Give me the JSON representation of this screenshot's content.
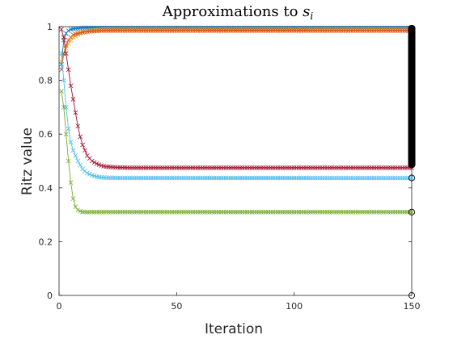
{
  "chart_data": {
    "type": "line",
    "title": {
      "prefix": "Approximations to ",
      "math": "s",
      "subscript": "i"
    },
    "xlabel": "Iteration",
    "ylabel": "Ritz  value",
    "xlim": [
      0,
      150
    ],
    "ylim": [
      0,
      1
    ],
    "xticks": [
      0,
      50,
      100,
      150
    ],
    "yticks": [
      0,
      0.2,
      0.4,
      0.6,
      0.8,
      1
    ],
    "ytick_labels": [
      "0",
      "0.2",
      "0.4",
      "0.6",
      "0.8",
      "1"
    ],
    "grid": false,
    "marker": "x",
    "series": [
      {
        "color": "#0072BD",
        "final": 0.995,
        "x": [
          1,
          2,
          3,
          4,
          5,
          6,
          8,
          10,
          15,
          20,
          30,
          150
        ],
        "y": [
          0.86,
          0.95,
          0.975,
          0.985,
          0.99,
          0.992,
          0.994,
          0.995,
          0.995,
          0.995,
          0.995,
          0.995
        ]
      },
      {
        "color": "#EDB120",
        "final": 0.99,
        "x": [
          1,
          2,
          3,
          4,
          5,
          6,
          8,
          10,
          13,
          16,
          20,
          25,
          30,
          150
        ],
        "y": [
          0.87,
          0.9,
          0.92,
          0.935,
          0.95,
          0.96,
          0.97,
          0.978,
          0.984,
          0.987,
          0.989,
          0.99,
          0.99,
          0.99
        ]
      },
      {
        "color": "#D95319",
        "final": 0.985,
        "x": [
          1,
          2,
          3,
          4,
          5,
          6,
          8,
          10,
          14,
          18,
          25,
          150
        ],
        "y": [
          0.84,
          0.9,
          0.93,
          0.95,
          0.96,
          0.97,
          0.975,
          0.98,
          0.983,
          0.985,
          0.985,
          0.985
        ]
      },
      {
        "color": "#A2142F",
        "final": 0.475,
        "x": [
          1,
          2,
          3,
          4,
          5,
          6,
          7,
          8,
          9,
          10,
          12,
          14,
          16,
          18,
          20,
          25,
          30,
          150
        ],
        "y": [
          0.99,
          0.96,
          0.9,
          0.84,
          0.78,
          0.73,
          0.68,
          0.63,
          0.59,
          0.56,
          0.52,
          0.5,
          0.49,
          0.483,
          0.479,
          0.476,
          0.475,
          0.475
        ]
      },
      {
        "color": "#4DBEEE",
        "final": 0.437,
        "x": [
          1,
          2,
          3,
          4,
          5,
          6,
          7,
          8,
          9,
          10,
          12,
          14,
          16,
          18,
          20,
          25,
          150
        ],
        "y": [
          0.9,
          0.8,
          0.7,
          0.62,
          0.57,
          0.54,
          0.52,
          0.5,
          0.485,
          0.47,
          0.455,
          0.447,
          0.442,
          0.439,
          0.438,
          0.437,
          0.437
        ]
      },
      {
        "color": "#77AC30",
        "final": 0.31,
        "x": [
          1,
          2,
          3,
          4,
          5,
          6,
          7,
          8,
          9,
          10,
          12,
          15,
          150
        ],
        "y": [
          0.76,
          0.7,
          0.6,
          0.5,
          0.42,
          0.36,
          0.33,
          0.318,
          0.313,
          0.311,
          0.31,
          0.31,
          0.31
        ]
      }
    ],
    "endpoint_circles_y": [
      0.437,
      0.31,
      0.0
    ],
    "black_band_y": [
      0.48,
      1.0
    ]
  }
}
